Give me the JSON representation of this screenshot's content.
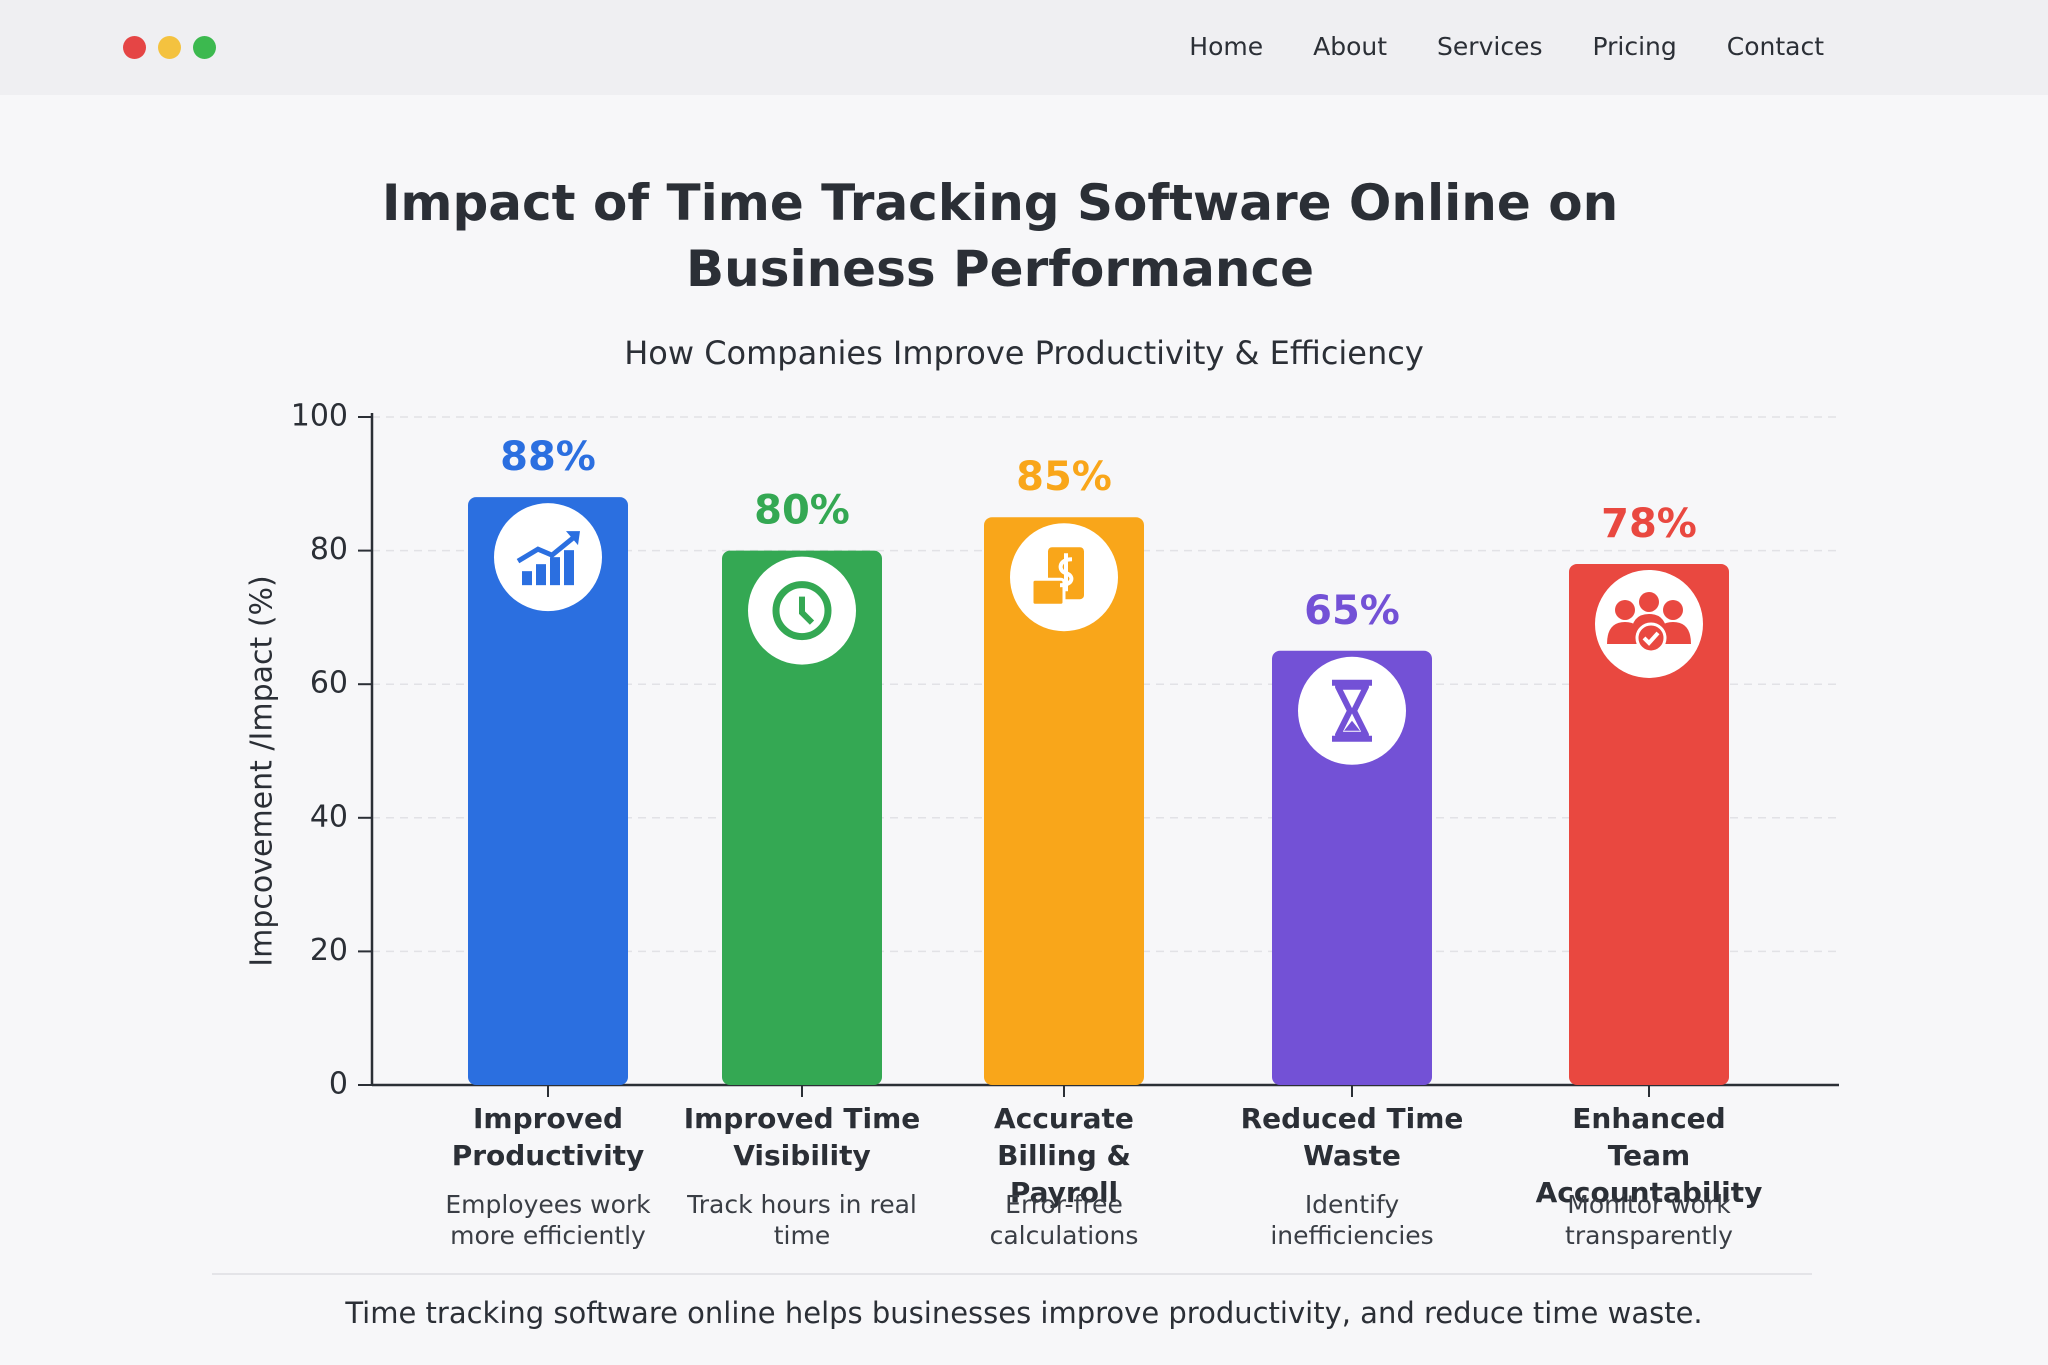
{
  "nav": [
    "Home",
    "About",
    "Services",
    "Pricing",
    "Contact"
  ],
  "chart_data": {
    "type": "bar",
    "title": "Impact of Time Tracking Software Online on Business Performance",
    "subtitle": "How Companies Improve Productivity & Efficiency",
    "y_label": "Impcovement /Impact (%)",
    "categories": [
      "Improved Productivity",
      "Improved Time Visibility",
      "Accurate Billing & Payroll",
      "Reduced Time Waste",
      "Enhanced Team Accountability"
    ],
    "descriptions": [
      "Employees work more efficiently",
      "Track hours in real time",
      "Error-free calculations",
      "Identify inefficiencies",
      "Monitor work transparently"
    ],
    "values": [
      88,
      80,
      85,
      65,
      78
    ],
    "value_labels": [
      "88%",
      "80%",
      "85%",
      "65%",
      "78%"
    ],
    "colors": [
      "#2b6fe0",
      "#34a853",
      "#f9a61a",
      "#7351d6",
      "#e94840"
    ],
    "ylim": [
      0,
      100
    ],
    "yticks": [
      0,
      20,
      40,
      60,
      80,
      100
    ],
    "grid": true
  },
  "footer": "Time tracking software online helps businesses improve productivity, and reduce time waste."
}
